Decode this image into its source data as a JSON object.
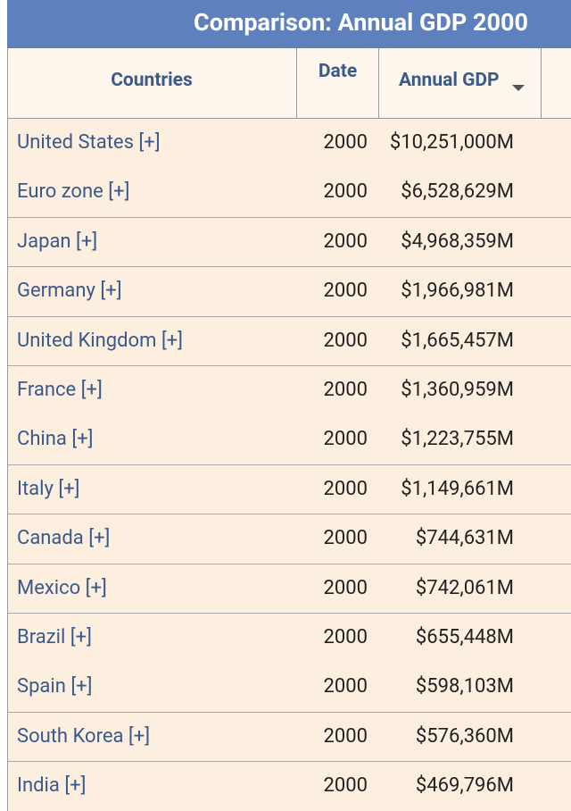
{
  "header": {
    "title": "Comparison: Annual GDP 2000"
  },
  "table": {
    "columns": [
      "Countries",
      "Date",
      "Annual GDP"
    ],
    "rows": [
      [
        "United States [+]",
        "2000",
        "$10,251,000M"
      ],
      [
        "Euro zone [+]",
        "2000",
        "$6,528,629M"
      ],
      [
        "Japan [+]",
        "2000",
        "$4,968,359M"
      ],
      [
        "Germany [+]",
        "2000",
        "$1,966,981M"
      ],
      [
        "United Kingdom [+]",
        "2000",
        "$1,665,457M"
      ],
      [
        "France [+]",
        "2000",
        "$1,360,959M"
      ],
      [
        "China [+]",
        "2000",
        "$1,223,755M"
      ],
      [
        "Italy [+]",
        "2000",
        "$1,149,661M"
      ],
      [
        "Canada [+]",
        "2000",
        "$744,631M"
      ],
      [
        "Mexico [+]",
        "2000",
        "$742,061M"
      ],
      [
        "Brazil [+]",
        "2000",
        "$655,448M"
      ],
      [
        "Spain [+]",
        "2000",
        "$598,103M"
      ],
      [
        "South Korea [+]",
        "2000",
        "$576,360M"
      ],
      [
        "India [+]",
        "2000",
        "$469,796M"
      ]
    ]
  }
}
